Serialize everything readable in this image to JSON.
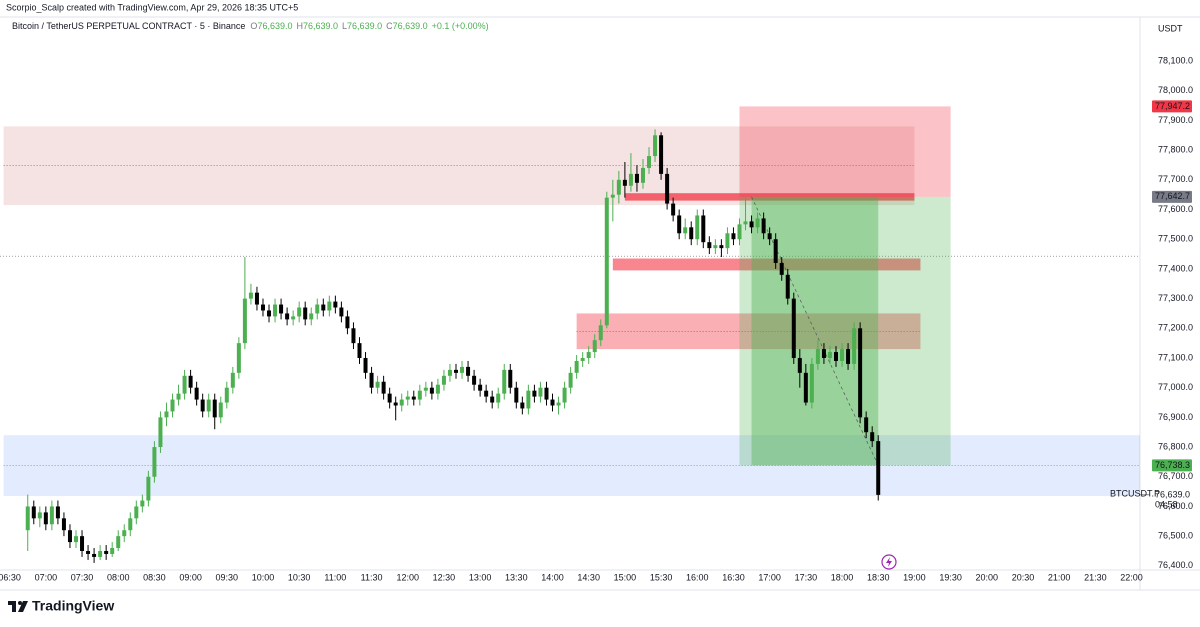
{
  "watermark": "Scorpio_Scalp created with TradingView.com, Apr 29, 2026 18:35 UTC+5",
  "brand": "TradingView",
  "chart_data": {
    "type": "candlestick",
    "title": "Bitcoin / TetherUS PERPETUAL CONTRACT · 5 · Binance",
    "ohlc_legend": [
      {
        "label": "O",
        "value": "76,639.0"
      },
      {
        "label": "H",
        "value": "76,639.0"
      },
      {
        "label": "L",
        "value": "76,639.0"
      },
      {
        "label": "C",
        "value": "76,639.0"
      }
    ],
    "change": "+0.1 (+0.00%)",
    "currency": "USDT",
    "up_color": "#4caf50",
    "down_color": "#000000",
    "grid": false,
    "xlim": [
      "06:22",
      "22:07"
    ],
    "xticks": [
      "06:30",
      "07:00",
      "07:30",
      "08:00",
      "08:30",
      "09:00",
      "09:30",
      "10:00",
      "10:30",
      "11:00",
      "11:30",
      "12:00",
      "12:30",
      "13:00",
      "13:30",
      "14:00",
      "14:30",
      "15:00",
      "15:30",
      "16:00",
      "16:30",
      "17:00",
      "17:30",
      "18:00",
      "18:30",
      "19:00",
      "19:30",
      "20:00",
      "20:30",
      "21:00",
      "21:30",
      "22:00"
    ],
    "ylim": [
      76386,
      78245
    ],
    "yticks": [
      {
        "value": 76400,
        "label": "76,400.0"
      },
      {
        "value": 76500,
        "label": "76,500.0"
      },
      {
        "value": 76600,
        "label": "76,600.0"
      },
      {
        "value": 76700,
        "label": "76,700.0"
      },
      {
        "value": 76800,
        "label": "76,800.0"
      },
      {
        "value": 76900,
        "label": "76,900.0"
      },
      {
        "value": 77000,
        "label": "77,000.0"
      },
      {
        "value": 77100,
        "label": "77,100.0"
      },
      {
        "value": 77200,
        "label": "77,200.0"
      },
      {
        "value": 77300,
        "label": "77,300.0"
      },
      {
        "value": 77400,
        "label": "77,400.0"
      },
      {
        "value": 77500,
        "label": "77,500.0"
      },
      {
        "value": 77600,
        "label": "77,600.0"
      },
      {
        "value": 77700,
        "label": "77,700.0"
      },
      {
        "value": 77800,
        "label": "77,800.0"
      },
      {
        "value": 77900,
        "label": "77,900.0"
      },
      {
        "value": 78000,
        "label": "78,000.0"
      },
      {
        "value": 78100,
        "label": "78,100.0"
      }
    ],
    "x": [
      "06:45",
      "06:50",
      "06:55",
      "07:00",
      "07:05",
      "07:10",
      "07:15",
      "07:20",
      "07:25",
      "07:30",
      "07:35",
      "07:40",
      "07:45",
      "07:50",
      "07:55",
      "08:00",
      "08:05",
      "08:10",
      "08:15",
      "08:20",
      "08:25",
      "08:30",
      "08:35",
      "08:40",
      "08:45",
      "08:50",
      "08:55",
      "09:00",
      "09:05",
      "09:10",
      "09:15",
      "09:20",
      "09:25",
      "09:30",
      "09:35",
      "09:40",
      "09:45",
      "09:50",
      "09:55",
      "10:00",
      "10:05",
      "10:10",
      "10:15",
      "10:20",
      "10:25",
      "10:30",
      "10:35",
      "10:40",
      "10:45",
      "10:50",
      "10:55",
      "11:00",
      "11:05",
      "11:10",
      "11:15",
      "11:20",
      "11:25",
      "11:30",
      "11:35",
      "11:40",
      "11:45",
      "11:50",
      "11:55",
      "12:00",
      "12:05",
      "12:10",
      "12:15",
      "12:20",
      "12:25",
      "12:30",
      "12:35",
      "12:40",
      "12:45",
      "12:50",
      "12:55",
      "13:00",
      "13:05",
      "13:10",
      "13:15",
      "13:20",
      "13:25",
      "13:30",
      "13:35",
      "13:40",
      "13:45",
      "13:50",
      "13:55",
      "14:00",
      "14:05",
      "14:10",
      "14:15",
      "14:20",
      "14:25",
      "14:30",
      "14:35",
      "14:40",
      "14:45",
      "14:50",
      "14:55",
      "15:00",
      "15:05",
      "15:10",
      "15:15",
      "15:20",
      "15:25",
      "15:30",
      "15:35",
      "15:40",
      "15:45",
      "15:50",
      "15:55",
      "16:00",
      "16:05",
      "16:10",
      "16:15",
      "16:20",
      "16:25",
      "16:30",
      "16:35",
      "16:40",
      "16:45",
      "16:50",
      "16:55",
      "17:00",
      "17:05",
      "17:10",
      "17:15",
      "17:20",
      "17:25",
      "17:30",
      "17:35",
      "17:40",
      "17:45",
      "17:50",
      "17:55",
      "18:00",
      "18:05",
      "18:10",
      "18:15",
      "18:20",
      "18:25",
      "18:30"
    ],
    "candles": [
      [
        76520,
        76640,
        76450,
        76600
      ],
      [
        76600,
        76620,
        76540,
        76560
      ],
      [
        76560,
        76600,
        76530,
        76580
      ],
      [
        76580,
        76600,
        76520,
        76540
      ],
      [
        76540,
        76620,
        76520,
        76600
      ],
      [
        76600,
        76620,
        76540,
        76560
      ],
      [
        76560,
        76580,
        76500,
        76520
      ],
      [
        76520,
        76540,
        76460,
        76480
      ],
      [
        76480,
        76520,
        76460,
        76500
      ],
      [
        76500,
        76520,
        76430,
        76450
      ],
      [
        76450,
        76470,
        76420,
        76440
      ],
      [
        76440,
        76460,
        76410,
        76430
      ],
      [
        76430,
        76470,
        76420,
        76450
      ],
      [
        76450,
        76470,
        76420,
        76440
      ],
      [
        76440,
        76480,
        76430,
        76460
      ],
      [
        76460,
        76520,
        76450,
        76500
      ],
      [
        76500,
        76540,
        76480,
        76520
      ],
      [
        76520,
        76580,
        76500,
        76560
      ],
      [
        76560,
        76620,
        76540,
        76600
      ],
      [
        76600,
        76640,
        76580,
        76620
      ],
      [
        76620,
        76720,
        76600,
        76700
      ],
      [
        76700,
        76820,
        76680,
        76800
      ],
      [
        76800,
        76920,
        76780,
        76900
      ],
      [
        76900,
        76950,
        76870,
        76920
      ],
      [
        76920,
        76980,
        76900,
        76960
      ],
      [
        76960,
        77010,
        76940,
        76980
      ],
      [
        76980,
        77060,
        76960,
        77040
      ],
      [
        77040,
        77060,
        76980,
        77000
      ],
      [
        77000,
        77020,
        76940,
        76960
      ],
      [
        76960,
        76980,
        76900,
        76920
      ],
      [
        76920,
        76980,
        76900,
        76960
      ],
      [
        76960,
        76980,
        76860,
        76900
      ],
      [
        76900,
        76970,
        76880,
        76950
      ],
      [
        76950,
        77020,
        76930,
        77000
      ],
      [
        77000,
        77070,
        76980,
        77050
      ],
      [
        77050,
        77170,
        77030,
        77150
      ],
      [
        77150,
        77440,
        77130,
        77300
      ],
      [
        77300,
        77350,
        77280,
        77320
      ],
      [
        77320,
        77340,
        77260,
        77280
      ],
      [
        77280,
        77300,
        77240,
        77260
      ],
      [
        77260,
        77280,
        77220,
        77240
      ],
      [
        77240,
        77300,
        77220,
        77280
      ],
      [
        77280,
        77300,
        77230,
        77250
      ],
      [
        77250,
        77270,
        77210,
        77230
      ],
      [
        77230,
        77260,
        77210,
        77240
      ],
      [
        77240,
        77290,
        77220,
        77270
      ],
      [
        77270,
        77290,
        77210,
        77230
      ],
      [
        77230,
        77270,
        77210,
        77250
      ],
      [
        77250,
        77300,
        77230,
        77280
      ],
      [
        77280,
        77300,
        77240,
        77260
      ],
      [
        77260,
        77310,
        77240,
        77290
      ],
      [
        77290,
        77310,
        77250,
        77270
      ],
      [
        77270,
        77290,
        77220,
        77240
      ],
      [
        77240,
        77260,
        77180,
        77200
      ],
      [
        77200,
        77220,
        77130,
        77150
      ],
      [
        77150,
        77170,
        77080,
        77100
      ],
      [
        77100,
        77120,
        77030,
        77050
      ],
      [
        77050,
        77070,
        76980,
        77000
      ],
      [
        77000,
        77040,
        76980,
        77020
      ],
      [
        77020,
        77040,
        76960,
        76980
      ],
      [
        76980,
        77000,
        76930,
        76950
      ],
      [
        76950,
        76970,
        76890,
        76940
      ],
      [
        76940,
        76980,
        76920,
        76960
      ],
      [
        76960,
        76990,
        76940,
        76970
      ],
      [
        76970,
        76990,
        76940,
        76960
      ],
      [
        76960,
        77010,
        76940,
        76990
      ],
      [
        76990,
        77020,
        76970,
        77000
      ],
      [
        77000,
        77020,
        76960,
        76980
      ],
      [
        76980,
        77030,
        76960,
        77010
      ],
      [
        77010,
        77060,
        76990,
        77040
      ],
      [
        77040,
        77080,
        77020,
        77060
      ],
      [
        77060,
        77080,
        77030,
        77050
      ],
      [
        77050,
        77090,
        77030,
        77070
      ],
      [
        77070,
        77090,
        77020,
        77040
      ],
      [
        77040,
        77060,
        76990,
        77010
      ],
      [
        77010,
        77030,
        76970,
        76990
      ],
      [
        76990,
        77010,
        76950,
        76970
      ],
      [
        76970,
        76990,
        76930,
        76950
      ],
      [
        76950,
        77000,
        76930,
        76980
      ],
      [
        76980,
        77080,
        76960,
        77060
      ],
      [
        77060,
        77080,
        76980,
        77000
      ],
      [
        77000,
        77020,
        76930,
        76950
      ],
      [
        76950,
        76970,
        76910,
        76930
      ],
      [
        76930,
        77010,
        76910,
        76990
      ],
      [
        76990,
        77010,
        76950,
        76970
      ],
      [
        76970,
        77020,
        76950,
        77000
      ],
      [
        77000,
        77020,
        76940,
        76960
      ],
      [
        76960,
        76980,
        76920,
        76940
      ],
      [
        76940,
        76970,
        76910,
        76950
      ],
      [
        76950,
        77020,
        76930,
        77000
      ],
      [
        77000,
        77070,
        76980,
        77050
      ],
      [
        77050,
        77110,
        77030,
        77090
      ],
      [
        77090,
        77120,
        77070,
        77100
      ],
      [
        77100,
        77140,
        77080,
        77120
      ],
      [
        77120,
        77180,
        77100,
        77160
      ],
      [
        77160,
        77230,
        77140,
        77210
      ],
      [
        77210,
        77660,
        77200,
        77640
      ],
      [
        77640,
        77700,
        77560,
        77650
      ],
      [
        77650,
        77730,
        77620,
        77700
      ],
      [
        77700,
        77760,
        77640,
        77680
      ],
      [
        77680,
        77790,
        77660,
        77720
      ],
      [
        77720,
        77750,
        77660,
        77690
      ],
      [
        77690,
        77770,
        77670,
        77740
      ],
      [
        77740,
        77810,
        77720,
        77780
      ],
      [
        77780,
        77870,
        77760,
        77850
      ],
      [
        77850,
        77860,
        77700,
        77720
      ],
      [
        77720,
        77740,
        77600,
        77620
      ],
      [
        77620,
        77640,
        77560,
        77580
      ],
      [
        77580,
        77600,
        77500,
        77520
      ],
      [
        77520,
        77570,
        77500,
        77540
      ],
      [
        77540,
        77560,
        77480,
        77500
      ],
      [
        77500,
        77600,
        77480,
        77580
      ],
      [
        77580,
        77600,
        77470,
        77490
      ],
      [
        77490,
        77510,
        77450,
        77470
      ],
      [
        77470,
        77500,
        77450,
        77480
      ],
      [
        77480,
        77500,
        77440,
        77470
      ],
      [
        77470,
        77540,
        77450,
        77520
      ],
      [
        77520,
        77540,
        77480,
        77500
      ],
      [
        77500,
        77570,
        77480,
        77550
      ],
      [
        77550,
        77650,
        77530,
        77560
      ],
      [
        77560,
        77580,
        77520,
        77540
      ],
      [
        77540,
        77590,
        77520,
        77570
      ],
      [
        77570,
        77590,
        77500,
        77520
      ],
      [
        77520,
        77540,
        77480,
        77500
      ],
      [
        77500,
        77520,
        77400,
        77420
      ],
      [
        77420,
        77440,
        77360,
        77380
      ],
      [
        77380,
        77400,
        77280,
        77300
      ],
      [
        77300,
        77320,
        77080,
        77100
      ],
      [
        77100,
        77130,
        77000,
        77050
      ],
      [
        77050,
        77080,
        76940,
        76950
      ],
      [
        76950,
        77100,
        76930,
        77080
      ],
      [
        77080,
        77160,
        77060,
        77130
      ],
      [
        77130,
        77150,
        77080,
        77100
      ],
      [
        77100,
        77140,
        77080,
        77120
      ],
      [
        77120,
        77140,
        77070,
        77090
      ],
      [
        77090,
        77150,
        77070,
        77130
      ],
      [
        77130,
        77150,
        77060,
        77080
      ],
      [
        77080,
        77220,
        77060,
        77200
      ],
      [
        77200,
        77220,
        76880,
        76900
      ],
      [
        76900,
        76920,
        76830,
        76850
      ],
      [
        76850,
        76870,
        76800,
        76820
      ],
      [
        76820,
        76840,
        76620,
        76639
      ]
    ],
    "zones": [
      {
        "from": "06:25",
        "to": "19:00",
        "top": 77880,
        "bottom": 77615,
        "color": "rgba(178,34,34,0.13)",
        "midline": true
      },
      {
        "from": "15:00",
        "to": "19:00",
        "top": 77655,
        "bottom": 77630,
        "color": "rgba(242,54,69,0.75)",
        "midline": false
      },
      {
        "from": "14:50",
        "to": "19:05",
        "top": 77435,
        "bottom": 77395,
        "color": "rgba(242,54,69,0.6)",
        "midline": false
      },
      {
        "from": "14:20",
        "to": "19:05",
        "top": 77250,
        "bottom": 77130,
        "color": "rgba(242,54,69,0.4)",
        "midline": true
      },
      {
        "from": "06:25",
        "to": "22:07",
        "top": 76840,
        "bottom": 76635,
        "color": "rgba(41,98,255,0.13)",
        "midline": true
      }
    ],
    "levels": [
      77443
    ],
    "position": {
      "from": "16:35",
      "to": "19:30",
      "entry_time": "16:45",
      "stop": {
        "value": 77947.2,
        "label": "77,947.2",
        "color": "#f23645"
      },
      "entry": {
        "value": 77642.7,
        "label": "77,642.7",
        "color": "#787b86"
      },
      "target": {
        "value": 76738.3,
        "label": "76,738.3",
        "color": "#4caf50"
      }
    },
    "last_price": {
      "value": 76639,
      "label": "76,639.0"
    },
    "symbol_tag": "BTCUSDT.P",
    "countdown": "04:58"
  }
}
